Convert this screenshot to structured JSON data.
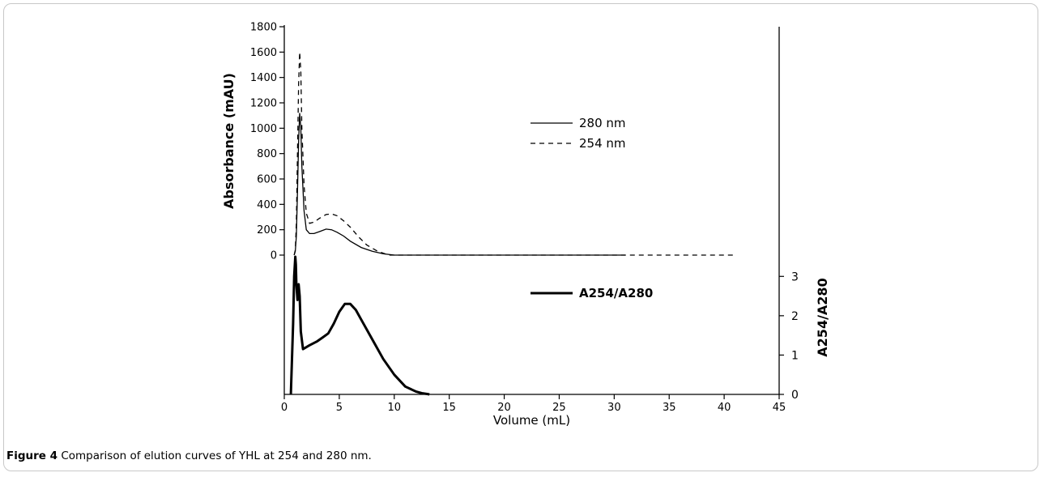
{
  "figure": {
    "label": "Figure 4",
    "caption": "Comparison of elution curves of YHL at 254 and 280 nm."
  },
  "chart_data": [
    {
      "type": "line",
      "title": "",
      "xlabel": "",
      "ylabel": "Absorbance (mAU)",
      "xlim": [
        0,
        45
      ],
      "ylim": [
        0,
        1800
      ],
      "yticks": [
        0,
        200,
        400,
        600,
        800,
        1000,
        1200,
        1400,
        1600,
        1800
      ],
      "grid": false,
      "legend_position": "top-right",
      "series": [
        {
          "name": "280 nm",
          "style": "solid",
          "x": [
            0.9,
            1.0,
            1.1,
            1.2,
            1.3,
            1.4,
            1.5,
            1.6,
            1.8,
            2.0,
            2.3,
            2.7,
            3.2,
            3.8,
            4.3,
            4.8,
            5.4,
            6.0,
            7.0,
            8.0,
            9.0,
            10.0,
            15.0,
            20.0,
            25.0,
            30.0,
            31.0
          ],
          "y": [
            0,
            30,
            150,
            500,
            900,
            1120,
            1000,
            700,
            350,
            200,
            170,
            170,
            185,
            205,
            200,
            180,
            150,
            110,
            60,
            30,
            10,
            0,
            0,
            0,
            0,
            0,
            0
          ]
        },
        {
          "name": "254 nm",
          "style": "dashed",
          "x": [
            0.9,
            1.0,
            1.1,
            1.2,
            1.3,
            1.4,
            1.5,
            1.6,
            1.8,
            2.0,
            2.3,
            2.7,
            3.2,
            3.8,
            4.3,
            4.8,
            5.4,
            6.0,
            6.8,
            7.5,
            8.5,
            9.5,
            15.0,
            20.0,
            25.0,
            30.0,
            35.0,
            40.0,
            41.0
          ],
          "y": [
            0,
            40,
            250,
            800,
            1350,
            1600,
            1450,
            1000,
            550,
            330,
            250,
            260,
            290,
            320,
            325,
            310,
            270,
            220,
            140,
            80,
            30,
            0,
            0,
            0,
            0,
            0,
            0,
            0,
            0
          ]
        }
      ]
    },
    {
      "type": "line",
      "title": "",
      "xlabel": "Volume (mL)",
      "ylabel": "A254/A280",
      "xlim": [
        0,
        45
      ],
      "ylim": [
        0,
        3.5
      ],
      "xticks": [
        0,
        5,
        10,
        15,
        20,
        25,
        30,
        35,
        40,
        45
      ],
      "yticks": [
        0,
        1,
        2,
        3
      ],
      "grid": false,
      "legend_position": "top-right",
      "series": [
        {
          "name": "A254/A280",
          "style": "bold",
          "x": [
            0.6,
            0.8,
            0.9,
            1.0,
            1.05,
            1.1,
            1.2,
            1.3,
            1.4,
            1.5,
            1.7,
            2.0,
            2.3,
            3.0,
            3.5,
            4.0,
            4.5,
            5.0,
            5.5,
            6.0,
            6.5,
            7.0,
            8.0,
            9.0,
            10.0,
            11.0,
            12.0,
            12.5,
            13.0,
            13.2
          ],
          "y": [
            0,
            1.8,
            3.0,
            3.5,
            3.3,
            2.8,
            2.4,
            2.8,
            2.5,
            1.6,
            1.15,
            1.2,
            1.25,
            1.35,
            1.45,
            1.55,
            1.8,
            2.1,
            2.3,
            2.3,
            2.15,
            1.9,
            1.4,
            0.9,
            0.5,
            0.2,
            0.07,
            0.03,
            0.01,
            0
          ]
        }
      ]
    }
  ]
}
